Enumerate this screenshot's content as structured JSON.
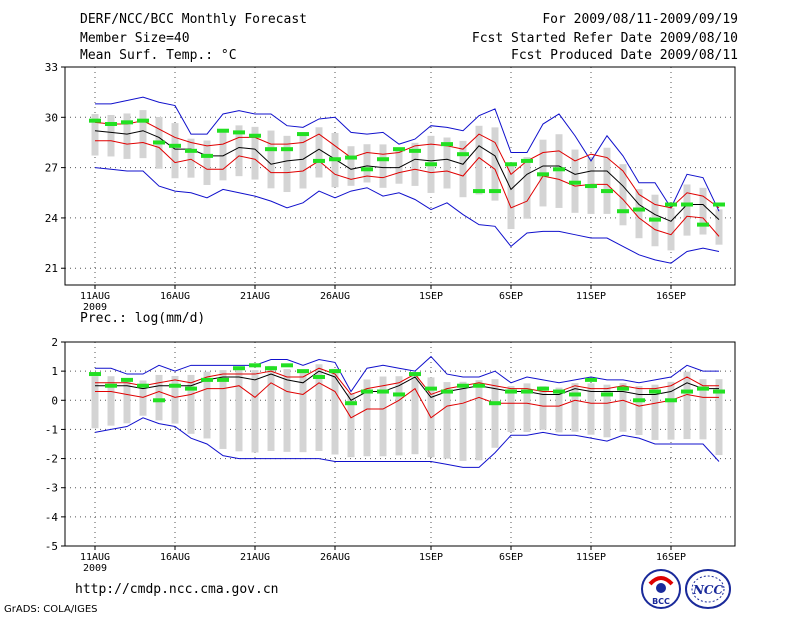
{
  "header": {
    "title": "DERF/NCC/BCC Monthly Forecast",
    "member_size": "Member Size=40",
    "variable": "Mean Surf. Temp.: °C",
    "period": "For 2009/08/11-2009/09/19",
    "refer_date": "Fcst Started Refer Date 2009/08/10",
    "produced_date": "Fcst Produced Date 2009/08/11"
  },
  "footer": {
    "url": "http://cmdp.ncc.cma.gov.cn",
    "grads": "GrADS: COLA/IGES",
    "logo_bcc": "BCC",
    "logo_ncc": "NCC"
  },
  "colors": {
    "box": "#d4d4d4",
    "mean": "#000000",
    "spread": "#e00000",
    "envelope": "#1010cc",
    "obs": "#22e022",
    "grid": "#555555"
  },
  "chart_data": [
    {
      "type": "line",
      "title": "Mean Surf. Temp.: °C",
      "x_tick_labels": [
        "11AUG",
        "16AUG",
        "21AUG",
        "26AUG",
        "1SEP",
        "6SEP",
        "11SEP",
        "16SEP"
      ],
      "x_tick_index": [
        0,
        5,
        10,
        15,
        21,
        26,
        31,
        36
      ],
      "x_year_label": "2009",
      "ylim": [
        20,
        33
      ],
      "y_ticks": [
        21,
        24,
        27,
        30,
        33
      ],
      "n_days": 40,
      "series": [
        {
          "name": "ensemble-max",
          "values": [
            30.8,
            30.8,
            31.0,
            31.2,
            30.9,
            30.7,
            29.0,
            29.0,
            30.2,
            30.4,
            30.2,
            30.2,
            29.5,
            29.4,
            29.9,
            30.0,
            29.1,
            29.0,
            29.1,
            28.4,
            28.7,
            29.5,
            29.4,
            29.2,
            30.1,
            30.5,
            27.9,
            27.9,
            29.6,
            30.2,
            28.9,
            27.4,
            28.9,
            27.7,
            26.1,
            26.1,
            24.6,
            26.6,
            26.4,
            24.4
          ]
        },
        {
          "name": "ensemble-mean-plus-sd",
          "values": [
            29.7,
            29.6,
            29.6,
            29.8,
            29.3,
            28.8,
            28.5,
            28.3,
            28.4,
            28.8,
            28.8,
            28.4,
            28.4,
            28.5,
            29.0,
            28.3,
            27.6,
            27.9,
            27.8,
            27.9,
            28.3,
            28.4,
            28.3,
            28.1,
            29.0,
            28.5,
            26.6,
            27.4,
            27.9,
            28.0,
            27.4,
            27.8,
            27.6,
            26.8,
            25.4,
            24.8,
            24.6,
            25.5,
            25.3,
            24.6
          ]
        },
        {
          "name": "ensemble-mean",
          "values": [
            29.2,
            29.1,
            29.0,
            29.2,
            28.8,
            28.1,
            28.1,
            27.7,
            27.7,
            28.2,
            28.1,
            27.2,
            27.4,
            27.5,
            28.1,
            27.5,
            26.9,
            27.1,
            27.0,
            27.0,
            27.5,
            27.4,
            27.5,
            27.2,
            28.3,
            27.7,
            25.7,
            26.6,
            27.1,
            27.1,
            26.6,
            26.8,
            26.8,
            25.9,
            24.8,
            24.2,
            23.8,
            24.8,
            24.8,
            23.9
          ]
        },
        {
          "name": "ensemble-mean-minus-sd",
          "values": [
            28.6,
            28.6,
            28.4,
            28.5,
            28.2,
            27.3,
            27.5,
            26.9,
            26.9,
            27.7,
            27.5,
            26.7,
            26.7,
            26.8,
            27.4,
            26.6,
            26.3,
            26.5,
            26.4,
            26.7,
            26.9,
            26.7,
            26.8,
            26.5,
            27.6,
            26.9,
            24.6,
            25.0,
            26.5,
            26.3,
            25.9,
            26.0,
            26.0,
            25.1,
            24.0,
            23.3,
            23.0,
            24.1,
            24.0,
            22.9
          ]
        },
        {
          "name": "ensemble-min",
          "values": [
            27.0,
            26.9,
            26.8,
            26.8,
            25.9,
            25.6,
            25.5,
            25.2,
            25.7,
            25.5,
            25.3,
            25.0,
            24.6,
            24.9,
            25.6,
            25.2,
            25.6,
            25.8,
            25.3,
            25.5,
            25.1,
            24.5,
            24.9,
            24.2,
            23.6,
            23.5,
            22.3,
            23.1,
            23.2,
            23.2,
            23.0,
            22.8,
            22.8,
            22.3,
            21.8,
            21.5,
            21.3,
            22.0,
            22.2,
            22.0
          ]
        },
        {
          "name": "observed-median",
          "values": [
            29.8,
            29.6,
            29.7,
            29.8,
            28.5,
            28.3,
            28.0,
            27.7,
            29.2,
            29.1,
            28.9,
            28.1,
            28.1,
            29.0,
            27.4,
            27.5,
            27.6,
            26.9,
            27.5,
            28.1,
            28.0,
            27.2,
            28.4,
            27.8,
            25.6,
            25.6,
            27.2,
            27.4,
            26.6,
            26.9,
            26.1,
            25.9,
            25.6,
            24.4,
            24.5,
            23.9,
            24.8,
            24.8,
            23.6,
            24.8
          ]
        }
      ]
    },
    {
      "type": "line",
      "title": "Prec.: log(mm/d)",
      "x_tick_labels": [
        "11AUG",
        "16AUG",
        "21AUG",
        "26AUG",
        "1SEP",
        "6SEP",
        "11SEP",
        "16SEP"
      ],
      "x_tick_index": [
        0,
        5,
        10,
        15,
        21,
        26,
        31,
        36
      ],
      "x_year_label": "2009",
      "ylim": [
        -5,
        2
      ],
      "y_ticks": [
        -5,
        -4,
        -3,
        -2,
        -1,
        0,
        1,
        2
      ],
      "n_days": 40,
      "series": [
        {
          "name": "ensemble-max",
          "values": [
            1.1,
            1.1,
            0.9,
            0.9,
            1.2,
            1.0,
            1.2,
            1.2,
            1.2,
            1.2,
            1.2,
            1.4,
            1.4,
            1.2,
            1.4,
            1.3,
            0.3,
            1.1,
            1.2,
            1.1,
            1.0,
            1.5,
            0.9,
            0.8,
            0.8,
            1.0,
            0.6,
            0.8,
            0.7,
            0.6,
            0.7,
            0.8,
            0.7,
            0.7,
            0.6,
            0.7,
            0.8,
            1.2,
            1.0,
            1.0
          ]
        },
        {
          "name": "ensemble-mean-plus-sd",
          "values": [
            0.6,
            0.6,
            0.6,
            0.5,
            0.6,
            0.7,
            0.6,
            0.8,
            0.9,
            0.9,
            0.9,
            1.0,
            0.8,
            0.8,
            1.1,
            0.9,
            0.2,
            0.4,
            0.5,
            0.6,
            0.9,
            0.2,
            0.4,
            0.5,
            0.6,
            0.5,
            0.4,
            0.4,
            0.3,
            0.3,
            0.5,
            0.4,
            0.4,
            0.5,
            0.4,
            0.4,
            0.5,
            0.8,
            0.5,
            0.5
          ]
        },
        {
          "name": "ensemble-mean",
          "values": [
            0.5,
            0.5,
            0.5,
            0.4,
            0.5,
            0.5,
            0.5,
            0.7,
            0.8,
            0.8,
            0.7,
            0.9,
            0.7,
            0.6,
            1.0,
            0.8,
            0.0,
            0.3,
            0.3,
            0.5,
            0.8,
            0.1,
            0.3,
            0.4,
            0.5,
            0.4,
            0.3,
            0.3,
            0.2,
            0.2,
            0.4,
            0.3,
            0.3,
            0.3,
            0.2,
            0.2,
            0.3,
            0.6,
            0.4,
            0.4
          ]
        },
        {
          "name": "ensemble-mean-minus-sd",
          "values": [
            0.3,
            0.3,
            0.2,
            0.1,
            0.3,
            0.1,
            0.2,
            0.4,
            0.4,
            0.5,
            0.1,
            0.6,
            0.3,
            0.2,
            0.6,
            0.3,
            -0.6,
            -0.3,
            -0.3,
            0.0,
            0.4,
            -0.6,
            -0.2,
            -0.1,
            0.1,
            -0.1,
            -0.1,
            -0.1,
            -0.2,
            -0.2,
            0.0,
            -0.1,
            -0.1,
            0.0,
            -0.2,
            -0.1,
            0.0,
            0.2,
            0.1,
            0.1
          ]
        },
        {
          "name": "ensemble-min",
          "values": [
            -1.1,
            -1.0,
            -0.9,
            -0.6,
            -0.8,
            -0.9,
            -1.3,
            -1.5,
            -1.9,
            -2.0,
            -2.0,
            -2.0,
            -2.0,
            -2.0,
            -2.0,
            -2.1,
            -2.1,
            -2.1,
            -2.1,
            -2.1,
            -2.1,
            -2.1,
            -2.2,
            -2.3,
            -2.3,
            -1.8,
            -1.2,
            -1.2,
            -1.1,
            -1.2,
            -1.2,
            -1.3,
            -1.4,
            -1.2,
            -1.3,
            -1.5,
            -1.5,
            -1.5,
            -1.5,
            -2.1
          ]
        },
        {
          "name": "observed-median",
          "values": [
            0.9,
            0.5,
            0.7,
            0.5,
            0.0,
            0.5,
            0.4,
            0.7,
            0.7,
            1.1,
            1.2,
            1.1,
            1.2,
            1.0,
            0.8,
            1.0,
            -0.1,
            0.3,
            0.3,
            0.2,
            0.9,
            0.4,
            0.3,
            0.5,
            0.5,
            -0.1,
            0.3,
            0.3,
            0.4,
            0.3,
            0.2,
            0.7,
            0.2,
            0.4,
            0.0,
            0.3,
            0.0,
            0.3,
            0.4,
            0.3
          ]
        }
      ]
    }
  ]
}
